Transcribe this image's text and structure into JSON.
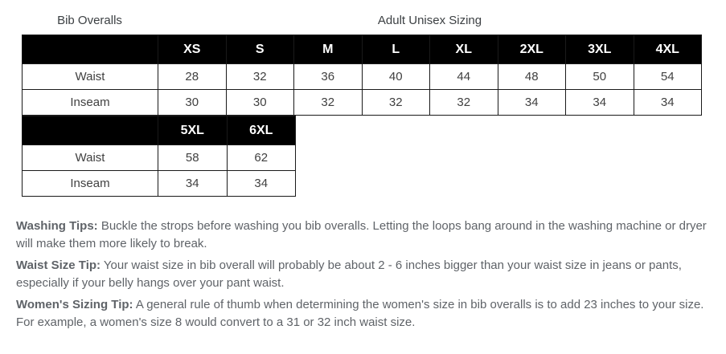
{
  "titles": {
    "left": "Bib Overalls",
    "right": "Adult Unisex Sizing"
  },
  "table1": {
    "columns": [
      "",
      "XS",
      "S",
      "M",
      "L",
      "XL",
      "2XL",
      "3XL",
      "4XL"
    ],
    "rows": [
      {
        "label": "Waist",
        "values": [
          "28",
          "32",
          "36",
          "40",
          "44",
          "48",
          "50",
          "54"
        ]
      },
      {
        "label": "Inseam",
        "values": [
          "30",
          "30",
          "32",
          "32",
          "32",
          "34",
          "34",
          "34"
        ]
      }
    ]
  },
  "table2": {
    "columns": [
      "",
      "5XL",
      "6XL"
    ],
    "rows": [
      {
        "label": "Waist",
        "values": [
          "58",
          "62"
        ]
      },
      {
        "label": "Inseam",
        "values": [
          "34",
          "34"
        ]
      }
    ]
  },
  "tips": [
    {
      "label": "Washing Tips:",
      "text": " Buckle the strops before washing you bib overalls. Letting the loops bang around in the washing machine or dryer will make them more likely to break."
    },
    {
      "label": "Waist Size Tip:",
      "text": " Your waist size in bib overall will probably be about 2 - 6 inches bigger than your waist size in jeans or pants, especially if your belly hangs over your pant waist."
    },
    {
      "label": "Women's Sizing Tip:",
      "text": " A general rule of thumb when determining the women's size in bib overalls is to add 23 inches to your size. For example, a women's size 8 would convert to a 31 or 32 inch waist size."
    }
  ],
  "colors": {
    "header_bg": "#000000",
    "header_text": "#ffffff",
    "table_text": "#404040",
    "tips_text": "#5f6368",
    "border": "#1a1a1a"
  }
}
